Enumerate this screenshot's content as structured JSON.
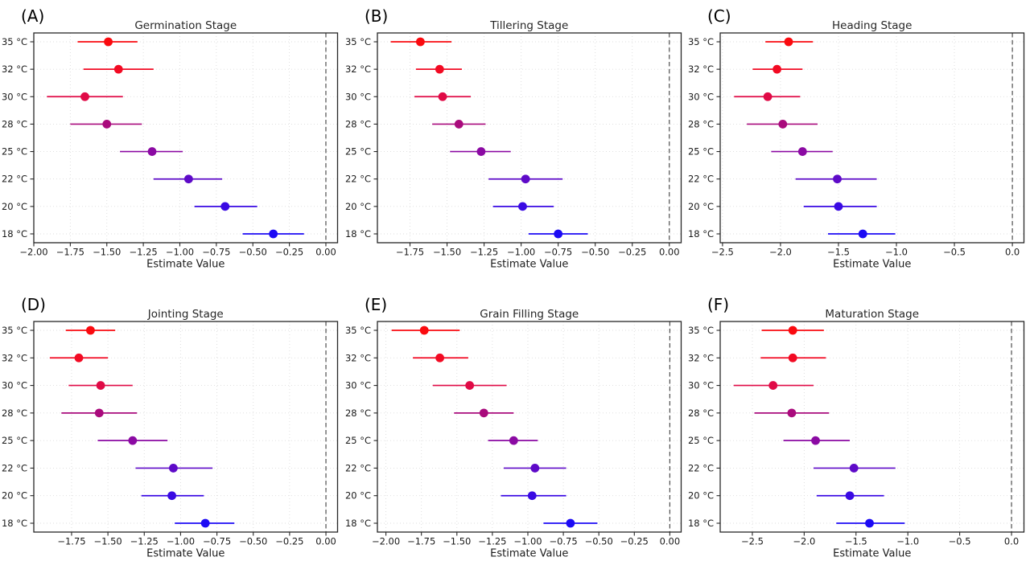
{
  "figure": {
    "background": "#ffffff",
    "grid": true,
    "legend": "none",
    "zero_reference_line": {
      "x": 0,
      "style": "dashed",
      "color": "#4d4d4d"
    },
    "axis_color": "#262626",
    "grid_color": "#dcdcdc",
    "temperature_colors": {
      "35 °C": "#fa0a0f",
      "32 °C": "#f20a23",
      "30 °C": "#e00a46",
      "28 °C": "#a90a7c",
      "25 °C": "#8b0aa3",
      "22 °C": "#5e0ac8",
      "20 °C": "#3a0ae3",
      "18 °C": "#1c0af4"
    }
  },
  "chart_data": [
    {
      "type": "scatter",
      "subtype": "horizontal-errorbar",
      "panel_label": "(A)",
      "title": "Germination Stage",
      "xlabel": "Estimate Value",
      "xlim": [
        -2.0,
        0.08
      ],
      "tick_values": [
        -2.0,
        -1.75,
        -1.5,
        -1.25,
        -1.0,
        -0.75,
        -0.5,
        -0.25,
        0.0
      ],
      "tick_labels": [
        "−2.00",
        "−1.75",
        "−1.50",
        "−1.25",
        "−1.00",
        "−0.75",
        "−0.50",
        "−0.25",
        "0.00"
      ],
      "rows": [
        {
          "category": "35 °C",
          "estimate": -1.49,
          "ci_low": -1.7,
          "ci_high": -1.29,
          "color": "#fa0a0f"
        },
        {
          "category": "32 °C",
          "estimate": -1.42,
          "ci_low": -1.66,
          "ci_high": -1.18,
          "color": "#f20a23"
        },
        {
          "category": "30 °C",
          "estimate": -1.65,
          "ci_low": -1.91,
          "ci_high": -1.39,
          "color": "#e00a46"
        },
        {
          "category": "28 °C",
          "estimate": -1.5,
          "ci_low": -1.75,
          "ci_high": -1.26,
          "color": "#a90a7c"
        },
        {
          "category": "25 °C",
          "estimate": -1.19,
          "ci_low": -1.41,
          "ci_high": -0.98,
          "color": "#8b0aa3"
        },
        {
          "category": "22 °C",
          "estimate": -0.94,
          "ci_low": -1.18,
          "ci_high": -0.71,
          "color": "#5e0ac8"
        },
        {
          "category": "20 °C",
          "estimate": -0.69,
          "ci_low": -0.9,
          "ci_high": -0.47,
          "color": "#3a0ae3"
        },
        {
          "category": "18 °C",
          "estimate": -0.36,
          "ci_low": -0.57,
          "ci_high": -0.15,
          "color": "#1c0af4"
        }
      ]
    },
    {
      "type": "scatter",
      "subtype": "horizontal-errorbar",
      "panel_label": "(B)",
      "title": "Tillering Stage",
      "xlabel": "Estimate Value",
      "xlim": [
        -1.97,
        0.08
      ],
      "tick_values": [
        -1.75,
        -1.5,
        -1.25,
        -1.0,
        -0.75,
        -0.5,
        -0.25,
        0.0
      ],
      "tick_labels": [
        "−1.75",
        "−1.50",
        "−1.25",
        "−1.00",
        "−0.75",
        "−0.50",
        "−0.25",
        "0.00"
      ],
      "rows": [
        {
          "category": "35 °C",
          "estimate": -1.68,
          "ci_low": -1.88,
          "ci_high": -1.47,
          "color": "#fa0a0f"
        },
        {
          "category": "32 °C",
          "estimate": -1.55,
          "ci_low": -1.71,
          "ci_high": -1.4,
          "color": "#f20a23"
        },
        {
          "category": "30 °C",
          "estimate": -1.53,
          "ci_low": -1.72,
          "ci_high": -1.34,
          "color": "#e00a46"
        },
        {
          "category": "28 °C",
          "estimate": -1.42,
          "ci_low": -1.6,
          "ci_high": -1.24,
          "color": "#a90a7c"
        },
        {
          "category": "25 °C",
          "estimate": -1.27,
          "ci_low": -1.48,
          "ci_high": -1.07,
          "color": "#8b0aa3"
        },
        {
          "category": "22 °C",
          "estimate": -0.97,
          "ci_low": -1.22,
          "ci_high": -0.72,
          "color": "#5e0ac8"
        },
        {
          "category": "20 °C",
          "estimate": -0.99,
          "ci_low": -1.19,
          "ci_high": -0.78,
          "color": "#3a0ae3"
        },
        {
          "category": "18 °C",
          "estimate": -0.75,
          "ci_low": -0.95,
          "ci_high": -0.55,
          "color": "#1c0af4"
        }
      ]
    },
    {
      "type": "scatter",
      "subtype": "horizontal-errorbar",
      "panel_label": "(C)",
      "title": "Heading Stage",
      "xlabel": "Estimate Value",
      "xlim": [
        -2.52,
        0.1
      ],
      "tick_values": [
        -2.5,
        -2.0,
        -1.5,
        -1.0,
        -0.5,
        0.0
      ],
      "tick_labels": [
        "−2.5",
        "−2.0",
        "−1.5",
        "−1.0",
        "−0.5",
        "0.0"
      ],
      "rows": [
        {
          "category": "35 °C",
          "estimate": -1.93,
          "ci_low": -2.13,
          "ci_high": -1.72,
          "color": "#fa0a0f"
        },
        {
          "category": "32 °C",
          "estimate": -2.03,
          "ci_low": -2.24,
          "ci_high": -1.81,
          "color": "#f20a23"
        },
        {
          "category": "30 °C",
          "estimate": -2.11,
          "ci_low": -2.4,
          "ci_high": -1.83,
          "color": "#e00a46"
        },
        {
          "category": "28 °C",
          "estimate": -1.98,
          "ci_low": -2.29,
          "ci_high": -1.68,
          "color": "#a90a7c"
        },
        {
          "category": "25 °C",
          "estimate": -1.81,
          "ci_low": -2.08,
          "ci_high": -1.55,
          "color": "#8b0aa3"
        },
        {
          "category": "22 °C",
          "estimate": -1.51,
          "ci_low": -1.87,
          "ci_high": -1.17,
          "color": "#5e0ac8"
        },
        {
          "category": "20 °C",
          "estimate": -1.5,
          "ci_low": -1.8,
          "ci_high": -1.17,
          "color": "#3a0ae3"
        },
        {
          "category": "18 °C",
          "estimate": -1.29,
          "ci_low": -1.59,
          "ci_high": -1.01,
          "color": "#1c0af4"
        }
      ]
    },
    {
      "type": "scatter",
      "subtype": "horizontal-errorbar",
      "panel_label": "(D)",
      "title": "Jointing Stage",
      "xlabel": "Estimate Value",
      "xlim": [
        -2.01,
        0.08
      ],
      "tick_values": [
        -1.75,
        -1.5,
        -1.25,
        -1.0,
        -0.75,
        -0.5,
        -0.25,
        0.0
      ],
      "tick_labels": [
        "−1.75",
        "−1.50",
        "−1.25",
        "−1.00",
        "−0.75",
        "−0.50",
        "−0.25",
        "0.00"
      ],
      "rows": [
        {
          "category": "35 °C",
          "estimate": -1.62,
          "ci_low": -1.79,
          "ci_high": -1.45,
          "color": "#fa0a0f"
        },
        {
          "category": "32 °C",
          "estimate": -1.7,
          "ci_low": -1.9,
          "ci_high": -1.5,
          "color": "#f20a23"
        },
        {
          "category": "30 °C",
          "estimate": -1.55,
          "ci_low": -1.77,
          "ci_high": -1.33,
          "color": "#e00a46"
        },
        {
          "category": "28 °C",
          "estimate": -1.56,
          "ci_low": -1.82,
          "ci_high": -1.3,
          "color": "#a90a7c"
        },
        {
          "category": "25 °C",
          "estimate": -1.33,
          "ci_low": -1.57,
          "ci_high": -1.09,
          "color": "#8b0aa3"
        },
        {
          "category": "22 °C",
          "estimate": -1.05,
          "ci_low": -1.31,
          "ci_high": -0.78,
          "color": "#5e0ac8"
        },
        {
          "category": "20 °C",
          "estimate": -1.06,
          "ci_low": -1.27,
          "ci_high": -0.84,
          "color": "#3a0ae3"
        },
        {
          "category": "18 °C",
          "estimate": -0.83,
          "ci_low": -1.04,
          "ci_high": -0.63,
          "color": "#1c0af4"
        }
      ]
    },
    {
      "type": "scatter",
      "subtype": "horizontal-errorbar",
      "panel_label": "(E)",
      "title": "Grain Filling Stage",
      "xlabel": "Estimate Value",
      "xlim": [
        -2.06,
        0.08
      ],
      "tick_values": [
        -2.0,
        -1.75,
        -1.5,
        -1.25,
        -1.0,
        -0.75,
        -0.5,
        -0.25,
        0.0
      ],
      "tick_labels": [
        "−2.00",
        "−1.75",
        "−1.50",
        "−1.25",
        "−1.00",
        "−0.75",
        "−0.50",
        "−0.25",
        "0.00"
      ],
      "rows": [
        {
          "category": "35 °C",
          "estimate": -1.73,
          "ci_low": -1.96,
          "ci_high": -1.48,
          "color": "#fa0a0f"
        },
        {
          "category": "32 °C",
          "estimate": -1.62,
          "ci_low": -1.81,
          "ci_high": -1.42,
          "color": "#f20a23"
        },
        {
          "category": "30 °C",
          "estimate": -1.41,
          "ci_low": -1.67,
          "ci_high": -1.15,
          "color": "#e00a46"
        },
        {
          "category": "28 °C",
          "estimate": -1.31,
          "ci_low": -1.52,
          "ci_high": -1.1,
          "color": "#a90a7c"
        },
        {
          "category": "25 °C",
          "estimate": -1.1,
          "ci_low": -1.28,
          "ci_high": -0.93,
          "color": "#8b0aa3"
        },
        {
          "category": "22 °C",
          "estimate": -0.95,
          "ci_low": -1.17,
          "ci_high": -0.73,
          "color": "#5e0ac8"
        },
        {
          "category": "20 °C",
          "estimate": -0.97,
          "ci_low": -1.19,
          "ci_high": -0.73,
          "color": "#3a0ae3"
        },
        {
          "category": "18 °C",
          "estimate": -0.7,
          "ci_low": -0.89,
          "ci_high": -0.51,
          "color": "#1c0af4"
        }
      ]
    },
    {
      "type": "scatter",
      "subtype": "horizontal-errorbar",
      "panel_label": "(F)",
      "title": "Maturation Stage",
      "xlabel": "Estimate Value",
      "xlim": [
        -2.81,
        0.12
      ],
      "tick_values": [
        -2.5,
        -2.0,
        -1.5,
        -1.0,
        -0.5,
        0.0
      ],
      "tick_labels": [
        "−2.5",
        "−2.0",
        "−1.5",
        "−1.0",
        "−0.5",
        "0.0"
      ],
      "rows": [
        {
          "category": "35 °C",
          "estimate": -2.11,
          "ci_low": -2.41,
          "ci_high": -1.81,
          "color": "#fa0a0f"
        },
        {
          "category": "32 °C",
          "estimate": -2.11,
          "ci_low": -2.42,
          "ci_high": -1.79,
          "color": "#f20a23"
        },
        {
          "category": "30 °C",
          "estimate": -2.3,
          "ci_low": -2.68,
          "ci_high": -1.91,
          "color": "#e00a46"
        },
        {
          "category": "28 °C",
          "estimate": -2.12,
          "ci_low": -2.48,
          "ci_high": -1.76,
          "color": "#a90a7c"
        },
        {
          "category": "25 °C",
          "estimate": -1.89,
          "ci_low": -2.2,
          "ci_high": -1.56,
          "color": "#8b0aa3"
        },
        {
          "category": "22 °C",
          "estimate": -1.52,
          "ci_low": -1.91,
          "ci_high": -1.12,
          "color": "#5e0ac8"
        },
        {
          "category": "20 °C",
          "estimate": -1.56,
          "ci_low": -1.88,
          "ci_high": -1.23,
          "color": "#3a0ae3"
        },
        {
          "category": "18 °C",
          "estimate": -1.37,
          "ci_low": -1.69,
          "ci_high": -1.03,
          "color": "#1c0af4"
        }
      ]
    }
  ]
}
